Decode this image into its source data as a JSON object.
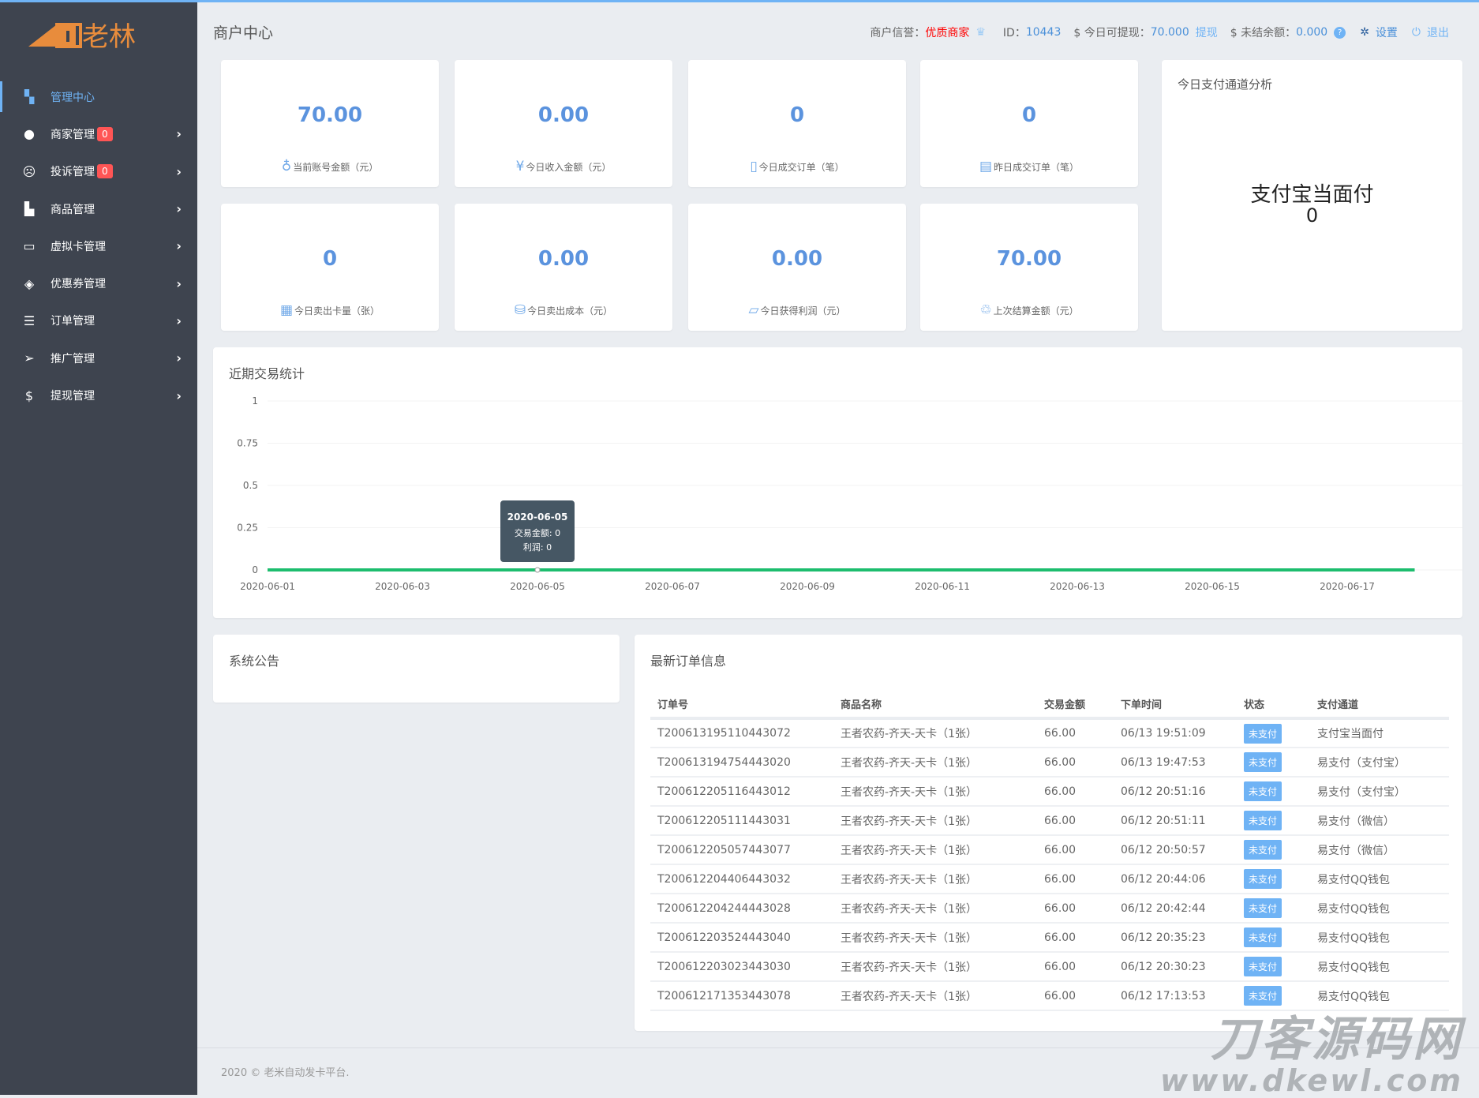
{
  "brand": {
    "logo_text": "老林"
  },
  "sidebar": {
    "items": [
      {
        "label": "管理中心",
        "icon": "dashboard-icon",
        "active": true
      },
      {
        "label": "商家管理",
        "icon": "user-icon",
        "badge": "0"
      },
      {
        "label": "投诉管理",
        "icon": "frown-icon",
        "badge": "0"
      },
      {
        "label": "商品管理",
        "icon": "shopping-bag-icon"
      },
      {
        "label": "虚拟卡管理",
        "icon": "credit-card-icon"
      },
      {
        "label": "优惠券管理",
        "icon": "ticket-icon"
      },
      {
        "label": "订单管理",
        "icon": "list-icon"
      },
      {
        "label": "推广管理",
        "icon": "paper-plane-icon"
      },
      {
        "label": "提现管理",
        "icon": "dollar-icon"
      }
    ]
  },
  "header": {
    "title": "商户中心",
    "credit_label": "商户信誉：",
    "credit_value": "优质商家",
    "id_label": "ID：",
    "id_value": "10443",
    "withdrawable_label": "$ 今日可提现：",
    "withdrawable_value": "70.000",
    "withdraw_link": "提现",
    "unsettled_label": "$ 未结余额：",
    "unsettled_value": "0.000",
    "settings": "设置",
    "logout": "退出"
  },
  "stats": [
    {
      "value": "70.00",
      "label": "当前账号金额（元）",
      "icon": "money-bag-icon"
    },
    {
      "value": "0.00",
      "label": "今日收入金额（元）",
      "icon": "yuan-refresh-icon"
    },
    {
      "value": "0",
      "label": "今日成交订单（笔）",
      "icon": "clipboard-icon"
    },
    {
      "value": "0",
      "label": "昨日成交订单（笔）",
      "icon": "calendar-icon"
    },
    {
      "value": "0",
      "label": "今日卖出卡量（张）",
      "icon": "card-stack-icon"
    },
    {
      "value": "0.00",
      "label": "今日卖出成本（元）",
      "icon": "coins-icon"
    },
    {
      "value": "0.00",
      "label": "今日获得利润（元）",
      "icon": "wallet-icon"
    },
    {
      "value": "70.00",
      "label": "上次结算金额（元）",
      "icon": "hand-money-icon"
    }
  ],
  "channel_panel": {
    "title": "今日支付通道分析",
    "channel": "支付宝当面付",
    "value": "0"
  },
  "chart_data": {
    "type": "line",
    "title": "近期交易统计",
    "x": [
      "2020-06-01",
      "2020-06-02",
      "2020-06-03",
      "2020-06-04",
      "2020-06-05",
      "2020-06-06",
      "2020-06-07",
      "2020-06-08",
      "2020-06-09",
      "2020-06-10",
      "2020-06-11",
      "2020-06-12",
      "2020-06-13",
      "2020-06-14",
      "2020-06-15",
      "2020-06-16",
      "2020-06-17",
      "2020-06-18"
    ],
    "x_tick_labels": [
      "2020-06-01",
      "2020-06-03",
      "2020-06-05",
      "2020-06-07",
      "2020-06-09",
      "2020-06-11",
      "2020-06-13",
      "2020-06-15",
      "2020-06-17"
    ],
    "y_ticks": [
      "1",
      "0.75",
      "0.5",
      "0.25",
      "0"
    ],
    "ylim": [
      0,
      1
    ],
    "grid": true,
    "series": [
      {
        "name": "交易金额",
        "values": [
          0,
          0,
          0,
          0,
          0,
          0,
          0,
          0,
          0,
          0,
          0,
          0,
          0,
          0,
          0,
          0,
          0,
          0
        ],
        "color": "#1dbd6e"
      },
      {
        "name": "利润",
        "values": [
          0,
          0,
          0,
          0,
          0,
          0,
          0,
          0,
          0,
          0,
          0,
          0,
          0,
          0,
          0,
          0,
          0,
          0
        ],
        "color": "#1dbd6e"
      }
    ],
    "tooltip": {
      "date": "2020-06-05",
      "line1": "交易金额: 0",
      "line2": "利润: 0"
    }
  },
  "notice": {
    "title": "系统公告"
  },
  "orders": {
    "title": "最新订单信息",
    "columns": [
      "订单号",
      "商品名称",
      "交易金额",
      "下单时间",
      "状态",
      "支付通道"
    ],
    "rows": [
      [
        "T200613195110443072",
        "王者农药-齐天-天卡（1张）",
        "66.00",
        "06/13 19:51:09",
        "未支付",
        "支付宝当面付"
      ],
      [
        "T200613194754443020",
        "王者农药-齐天-天卡（1张）",
        "66.00",
        "06/13 19:47:53",
        "未支付",
        "易支付（支付宝）"
      ],
      [
        "T200612205116443012",
        "王者农药-齐天-天卡（1张）",
        "66.00",
        "06/12 20:51:16",
        "未支付",
        "易支付（支付宝）"
      ],
      [
        "T200612205111443031",
        "王者农药-齐天-天卡（1张）",
        "66.00",
        "06/12 20:51:11",
        "未支付",
        "易支付（微信）"
      ],
      [
        "T200612205057443077",
        "王者农药-齐天-天卡（1张）",
        "66.00",
        "06/12 20:50:57",
        "未支付",
        "易支付（微信）"
      ],
      [
        "T200612204406443032",
        "王者农药-齐天-天卡（1张）",
        "66.00",
        "06/12 20:44:06",
        "未支付",
        "易支付QQ钱包"
      ],
      [
        "T200612204244443028",
        "王者农药-齐天-天卡（1张）",
        "66.00",
        "06/12 20:42:44",
        "未支付",
        "易支付QQ钱包"
      ],
      [
        "T200612203524443040",
        "王者农药-齐天-天卡（1张）",
        "66.00",
        "06/12 20:35:23",
        "未支付",
        "易支付QQ钱包"
      ],
      [
        "T200612203023443030",
        "王者农药-齐天-天卡（1张）",
        "66.00",
        "06/12 20:30:23",
        "未支付",
        "易支付QQ钱包"
      ],
      [
        "T200612171353443078",
        "王者农药-齐天-天卡（1张）",
        "66.00",
        "06/12 17:13:53",
        "未支付",
        "易支付QQ钱包"
      ]
    ]
  },
  "footer": {
    "text": "2020 © 老米自动发卡平台."
  },
  "watermark": {
    "line1": "刀客源码网",
    "line2": "www.dkewl.com"
  },
  "colors": {
    "accent": "#6fb3f5",
    "sidebar": "#3e444f",
    "stat_value": "#5b93de",
    "badge": "#ff5555",
    "line": "#1dbd6e",
    "logo": "#e88c3c"
  }
}
